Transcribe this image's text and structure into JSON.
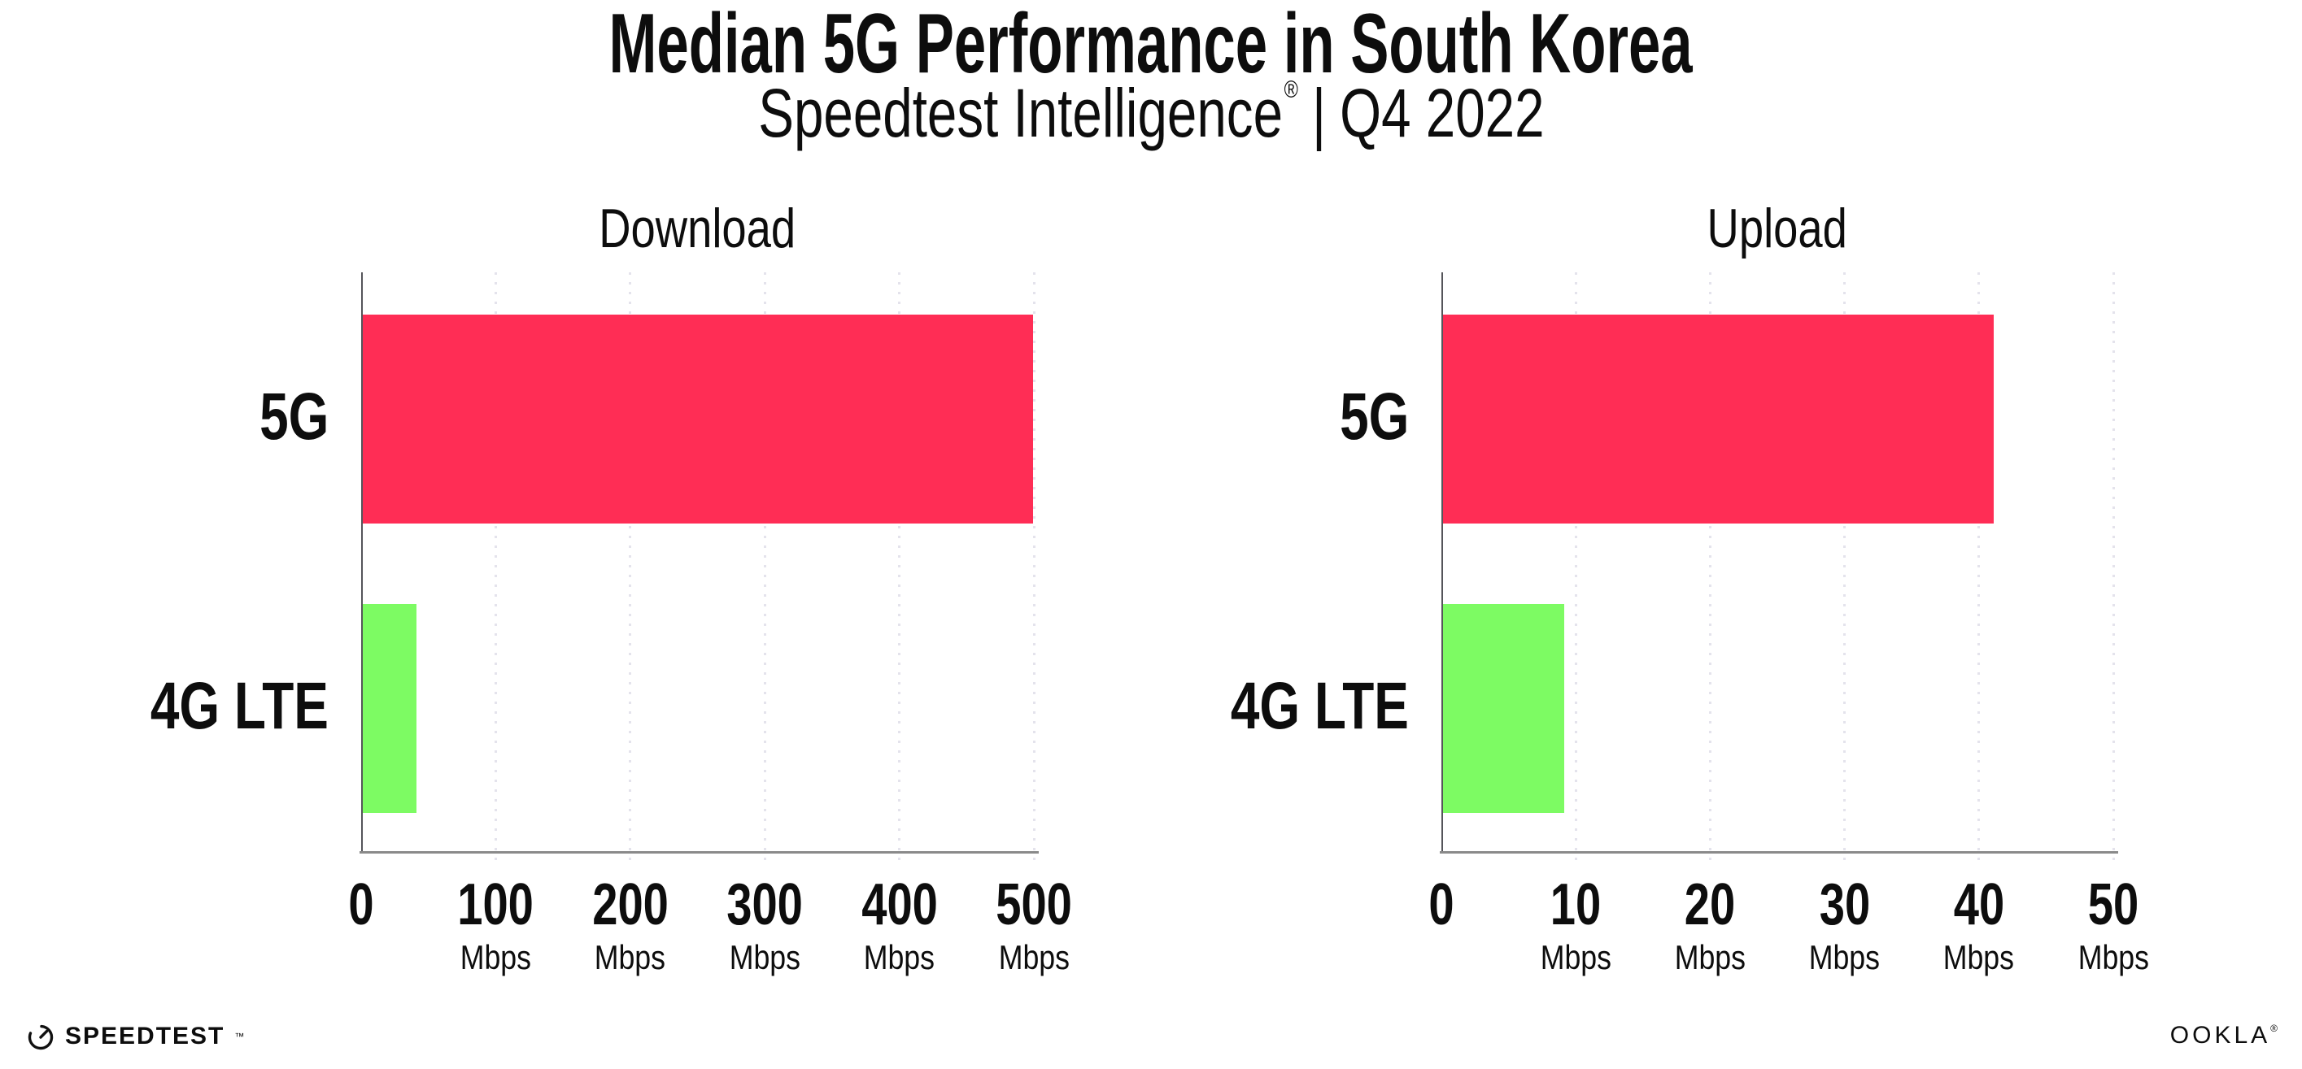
{
  "header": {
    "title": "Median 5G Performance in South Korea",
    "subtitle_product": "Speedtest Intelligence",
    "subtitle_reg": "®",
    "subtitle_sep": "|",
    "subtitle_period": "Q4 2022"
  },
  "colors": {
    "bar_5g": "#FF2D55",
    "bar_4g": "#7DFB63",
    "gridline": "#E4E3EC",
    "axis_line": "#8A8A8A",
    "yaxis_line": "#55555A",
    "text": "#0D0D0D"
  },
  "chart_data": [
    {
      "type": "bar",
      "orientation": "horizontal",
      "title": "Download",
      "categories": [
        "5G",
        "4G LTE"
      ],
      "values": [
        498,
        40
      ],
      "unit": "Mbps",
      "xlim": [
        0,
        500
      ],
      "xticks": [
        0,
        100,
        200,
        300,
        400,
        500
      ],
      "tick_unit_label": "Mbps",
      "bar_colors": [
        "#FF2D55",
        "#7DFB63"
      ],
      "grid": "dotted-vertical",
      "legend": "none"
    },
    {
      "type": "bar",
      "orientation": "horizontal",
      "title": "Upload",
      "categories": [
        "5G",
        "4G LTE"
      ],
      "values": [
        41,
        9
      ],
      "unit": "Mbps",
      "xlim": [
        0,
        50
      ],
      "xticks": [
        0,
        10,
        20,
        30,
        40,
        50
      ],
      "tick_unit_label": "Mbps",
      "bar_colors": [
        "#FF2D55",
        "#7DFB63"
      ],
      "grid": "dotted-vertical",
      "legend": "none"
    }
  ],
  "footer": {
    "speedtest": "SPEEDTEST",
    "speedtest_mark": "™",
    "ookla": "OOKLA",
    "ookla_mark": "®"
  }
}
